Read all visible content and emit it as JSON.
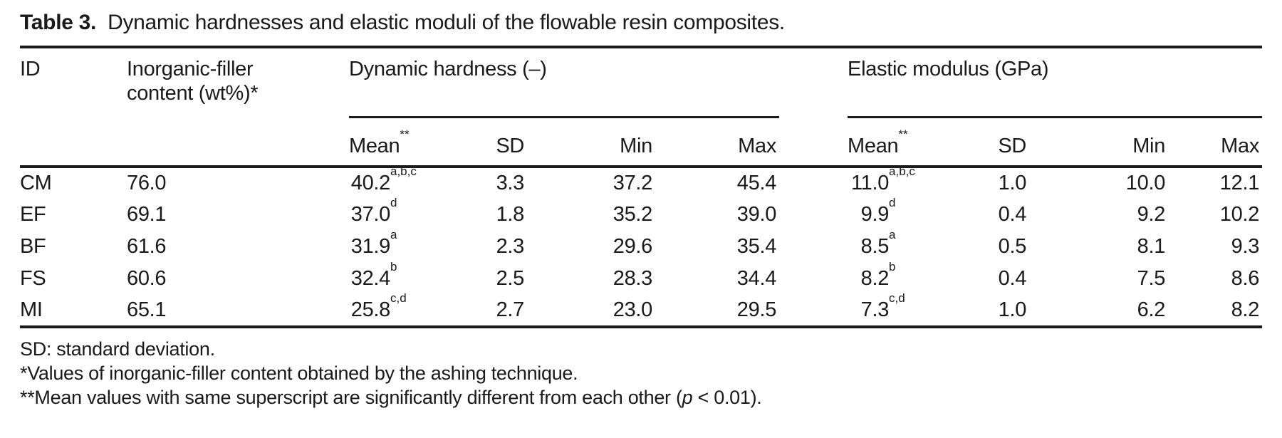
{
  "caption": {
    "label": "Table 3.",
    "text": "Dynamic hardnesses and elastic moduli of the flowable resin composites."
  },
  "headers": {
    "id": "ID",
    "filler_line1": "Inorganic-filler",
    "filler_line2": "content (wt%)*",
    "group1": "Dynamic hardness (–)",
    "group2": "Elastic modulus (GPa)"
  },
  "subheaders": {
    "mean": "Mean",
    "mean_sup": "**",
    "sd": "SD",
    "min": "Min",
    "max": "Max"
  },
  "rows": [
    {
      "id": "CM",
      "filler": "76.0",
      "dh_mean": "40.2",
      "dh_sup": "a,b,c",
      "dh_sd": "3.3",
      "dh_min": "37.2",
      "dh_max": "45.4",
      "em_mean": "11.0",
      "em_sup": "a,b,c",
      "em_sd": "1.0",
      "em_min": "10.0",
      "em_max": "12.1"
    },
    {
      "id": "EF",
      "filler": "69.1",
      "dh_mean": "37.0",
      "dh_sup": "d",
      "dh_sd": "1.8",
      "dh_min": "35.2",
      "dh_max": "39.0",
      "em_mean": "9.9",
      "em_sup": "d",
      "em_sd": "0.4",
      "em_min": "9.2",
      "em_max": "10.2"
    },
    {
      "id": "BF",
      "filler": "61.6",
      "dh_mean": "31.9",
      "dh_sup": "a",
      "dh_sd": "2.3",
      "dh_min": "29.6",
      "dh_max": "35.4",
      "em_mean": "8.5",
      "em_sup": "a",
      "em_sd": "0.5",
      "em_min": "8.1",
      "em_max": "9.3"
    },
    {
      "id": "FS",
      "filler": "60.6",
      "dh_mean": "32.4",
      "dh_sup": "b",
      "dh_sd": "2.5",
      "dh_min": "28.3",
      "dh_max": "34.4",
      "em_mean": "8.2",
      "em_sup": "b",
      "em_sd": "0.4",
      "em_min": "7.5",
      "em_max": "8.6"
    },
    {
      "id": "MI",
      "filler": "65.1",
      "dh_mean": "25.8",
      "dh_sup": "c,d",
      "dh_sd": "2.7",
      "dh_min": "23.0",
      "dh_max": "29.5",
      "em_mean": "7.3",
      "em_sup": "c,d",
      "em_sd": "1.0",
      "em_min": "6.2",
      "em_max": "8.2"
    }
  ],
  "footnotes": {
    "line1": "SD: standard deviation.",
    "line2": "*Values of inorganic-filler content obtained by the ashing technique.",
    "line3_pre": "**Mean values with same superscript are significantly different from each other (",
    "line3_italic": "p",
    "line3_post": " < 0.01)."
  }
}
